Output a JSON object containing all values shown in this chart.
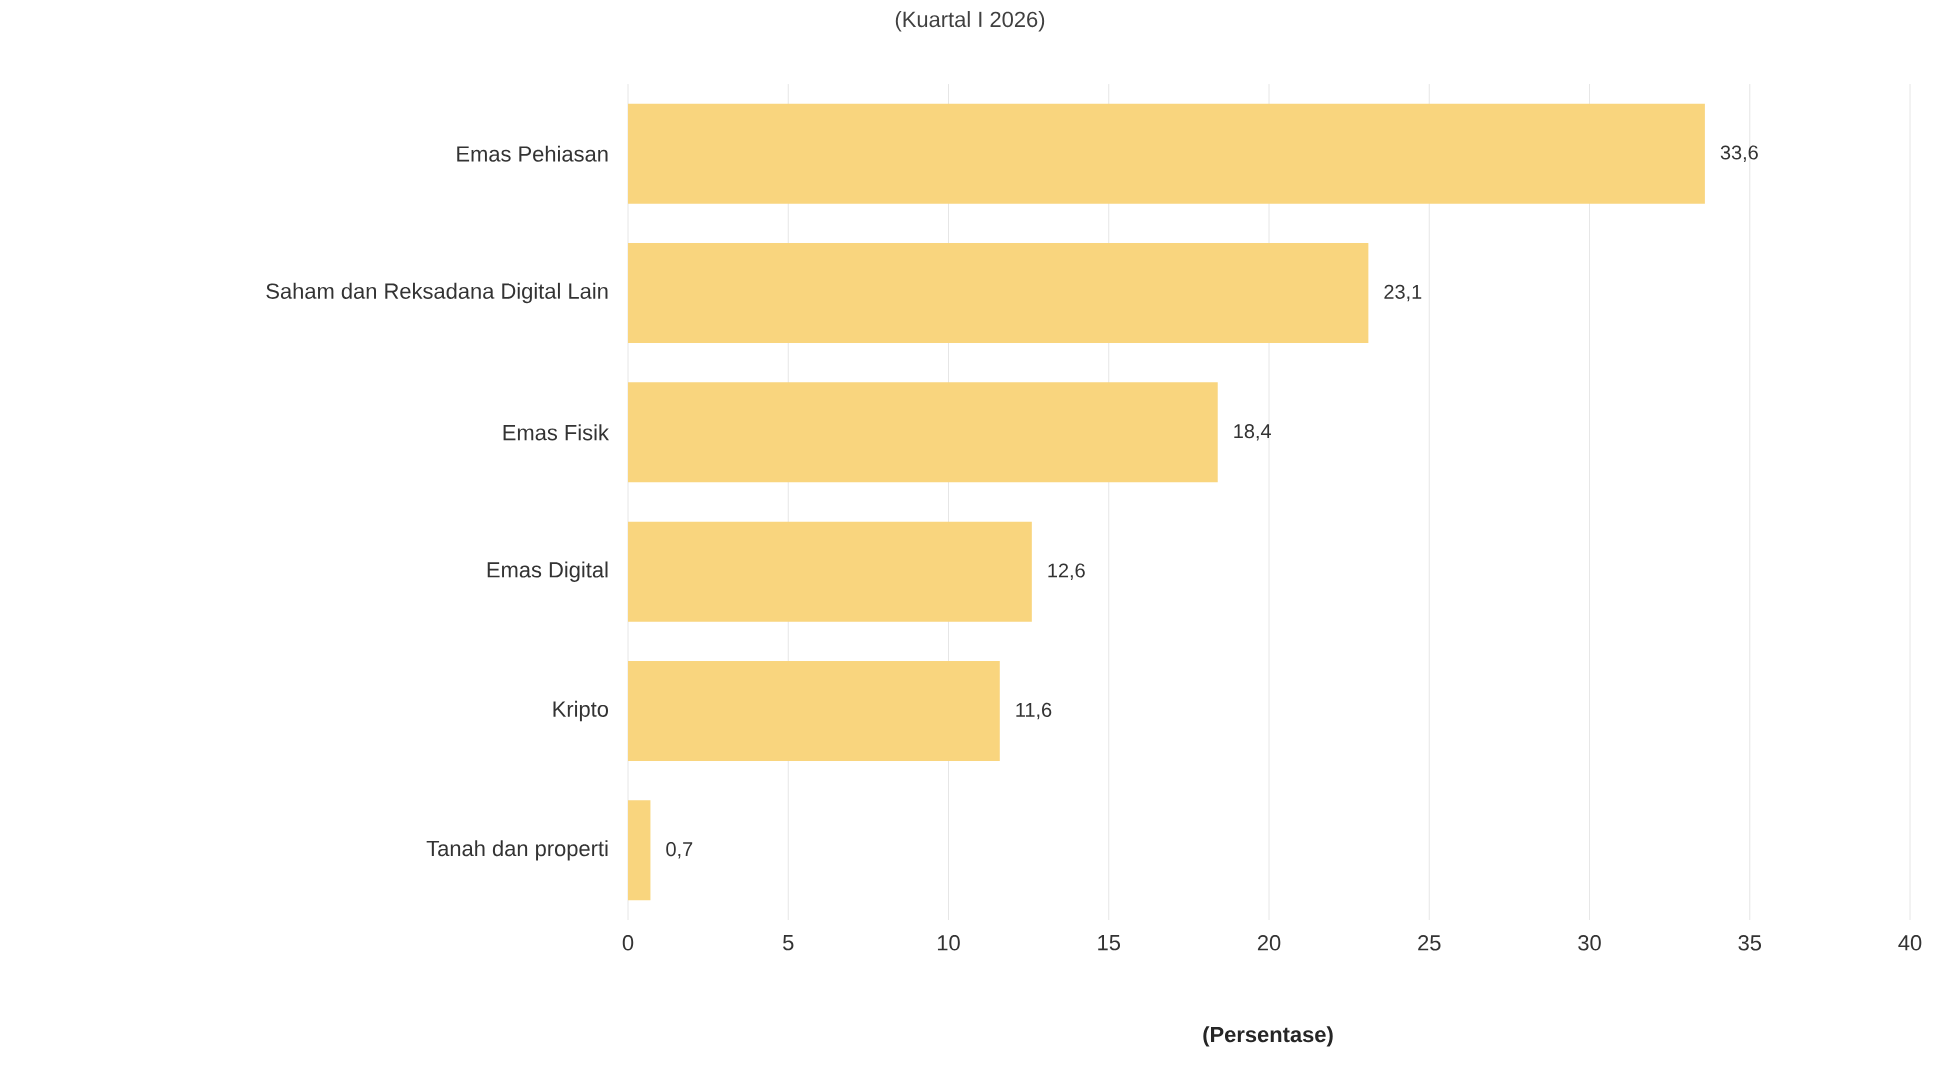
{
  "chart_data": {
    "type": "bar",
    "orientation": "horizontal",
    "subtitle": "(Kuartal I 2026)",
    "xlabel": "(Persentase)",
    "categories": [
      "Emas Pehiasan",
      "Saham dan Reksadana Digital Lain",
      "Emas Fisik",
      "Emas Digital",
      "Kripto",
      "Tanah dan properti"
    ],
    "values": [
      33.6,
      23.1,
      18.4,
      12.6,
      11.6,
      0.7
    ],
    "value_labels": [
      "33,6",
      "23,1",
      "18,4",
      "12,6",
      "11,6",
      "0,7"
    ],
    "color": "#f9d57e",
    "xlim": [
      0,
      40
    ],
    "xticks": [
      0,
      5,
      10,
      15,
      20,
      25,
      30,
      35,
      40
    ],
    "grid": "x"
  }
}
